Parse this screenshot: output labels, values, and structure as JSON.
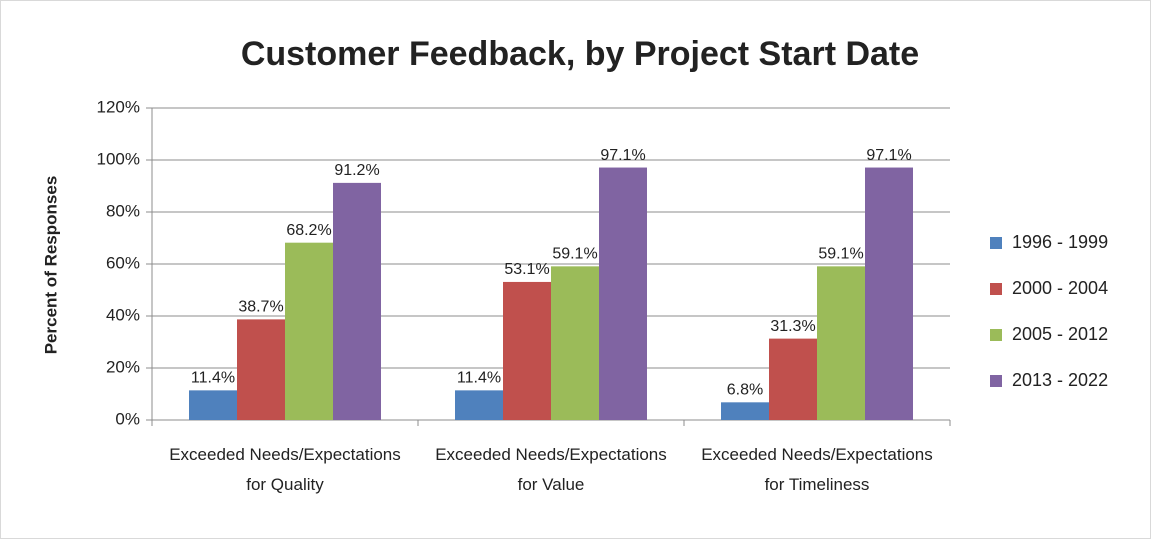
{
  "chart_data": {
    "type": "bar",
    "title": "Customer Feedback, by Project Start Date",
    "y_label": "Percent of Responses",
    "categories": [
      "Exceeded Needs/Expectations for Quality",
      "Exceeded Needs/Expectations for Value",
      "Exceeded Needs/Expectations for Timeliness"
    ],
    "series": [
      {
        "name": "1996 - 1999",
        "color": "#4f81bd",
        "values": [
          11.4,
          11.4,
          6.8
        ],
        "value_labels": [
          "11.4%",
          "11.4%",
          "6.8%"
        ]
      },
      {
        "name": "2000 - 2004",
        "color": "#c0504d",
        "values": [
          38.7,
          53.1,
          31.3
        ],
        "value_labels": [
          "38.7%",
          "53.1%",
          "31.3%"
        ]
      },
      {
        "name": "2005 - 2012",
        "color": "#9bbb59",
        "values": [
          68.2,
          59.1,
          59.1
        ],
        "value_labels": [
          "68.2%",
          "59.1%",
          "59.1%"
        ]
      },
      {
        "name": "2013 - 2022",
        "color": "#8064a2",
        "values": [
          91.2,
          97.1,
          97.1
        ],
        "value_labels": [
          "91.2%",
          "97.1%",
          "97.1%"
        ]
      }
    ],
    "ylim": [
      0,
      120
    ],
    "yticks": [
      {
        "value": 0,
        "label": "0%"
      },
      {
        "value": 20,
        "label": "20%"
      },
      {
        "value": 40,
        "label": "40%"
      },
      {
        "value": 60,
        "label": "60%"
      },
      {
        "value": 80,
        "label": "80%"
      },
      {
        "value": 100,
        "label": "100%"
      },
      {
        "value": 120,
        "label": "120%"
      }
    ],
    "grid": true,
    "legend": "right"
  }
}
